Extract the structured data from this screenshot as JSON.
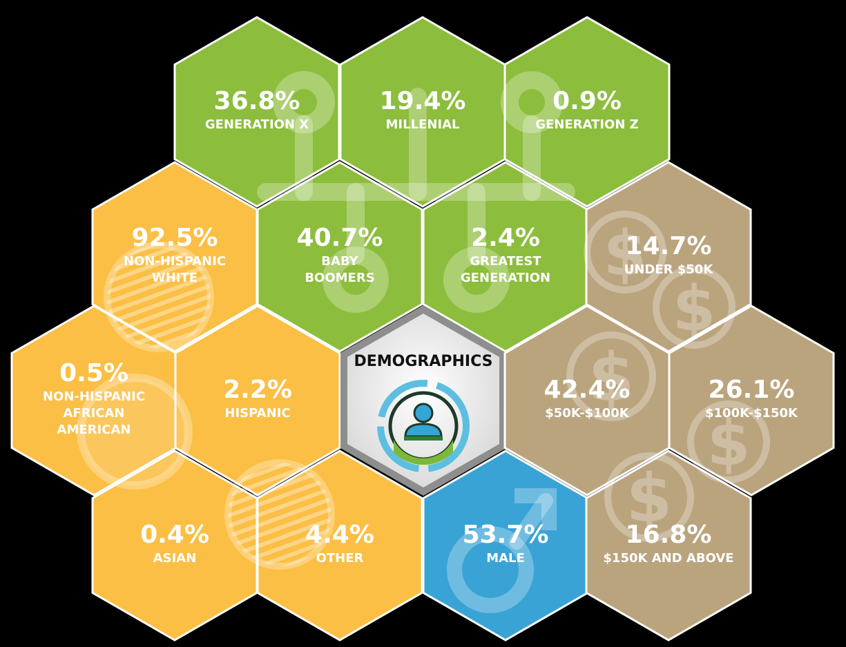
{
  "title": "DEMOGRAPHICS",
  "colors": {
    "generation": "#8cbd3c",
    "ethnicity": "#fbbf45",
    "income": "#baa47e",
    "male": "#3aa3d6",
    "center": "#f2f2f2",
    "stroke": "#ffffff"
  },
  "cells": [
    {
      "id": "gen-x",
      "group": "generation",
      "value": "36.8%",
      "label": [
        "GENERATION X"
      ]
    },
    {
      "id": "millenial",
      "group": "generation",
      "value": "19.4%",
      "label": [
        "MILLENIAL"
      ]
    },
    {
      "id": "gen-z",
      "group": "generation",
      "value": "0.9%",
      "label": [
        "GENERATION Z"
      ]
    },
    {
      "id": "nh-white",
      "group": "ethnicity",
      "value": "92.5%",
      "label": [
        "NON-HISPANIC",
        "WHITE"
      ]
    },
    {
      "id": "boomers",
      "group": "generation",
      "value": "40.7%",
      "label": [
        "BABY",
        "BOOMERS"
      ]
    },
    {
      "id": "greatest",
      "group": "generation",
      "value": "2.4%",
      "label": [
        "GREATEST",
        "GENERATION"
      ]
    },
    {
      "id": "under-50k",
      "group": "income",
      "value": "14.7%",
      "label": [
        "UNDER $50K"
      ]
    },
    {
      "id": "nh-african-american",
      "group": "ethnicity",
      "value": "0.5%",
      "label": [
        "NON-HISPANIC",
        "AFRICAN",
        "AMERICAN"
      ]
    },
    {
      "id": "hispanic",
      "group": "ethnicity",
      "value": "2.2%",
      "label": [
        "HISPANIC"
      ]
    },
    {
      "id": "center",
      "group": "center",
      "value": "",
      "label": []
    },
    {
      "id": "50k-100k",
      "group": "income",
      "value": "42.4%",
      "label": [
        "$50K-$100K"
      ]
    },
    {
      "id": "100k-150k",
      "group": "income",
      "value": "26.1%",
      "label": [
        "$100K-$150K"
      ]
    },
    {
      "id": "asian",
      "group": "ethnicity",
      "value": "0.4%",
      "label": [
        "ASIAN"
      ]
    },
    {
      "id": "other",
      "group": "ethnicity",
      "value": "4.4%",
      "label": [
        "OTHER"
      ]
    },
    {
      "id": "male",
      "group": "male",
      "value": "53.7%",
      "label": [
        "MALE"
      ]
    },
    {
      "id": "150k-above",
      "group": "income",
      "value": "16.8%",
      "label": [
        "$150K AND ABOVE"
      ]
    }
  ]
}
